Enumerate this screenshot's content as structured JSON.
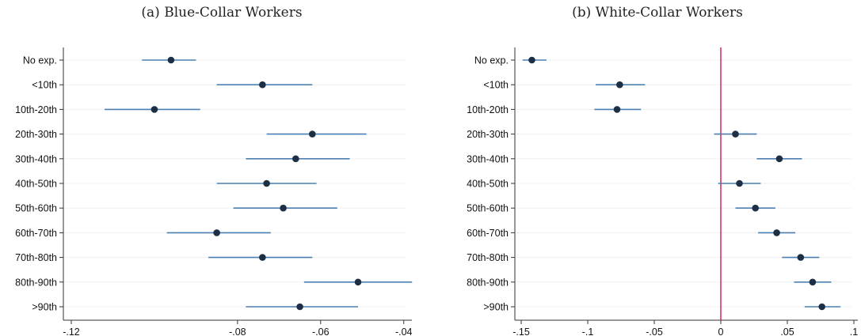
{
  "chart_data": [
    {
      "type": "scatter",
      "subtype": "coefficient-plot-with-confidence-intervals",
      "title": "(a) Blue-Collar Workers",
      "categories": [
        "No exp.",
        "<10th",
        "10th-20th",
        "20th-30th",
        "30th-40th",
        "40th-50th",
        "50th-60th",
        "60th-70th",
        "70th-80th",
        "80th-90th",
        ">90th"
      ],
      "x_ticks": [
        -0.12,
        -0.08,
        -0.06,
        -0.04
      ],
      "x_tick_labels": [
        "-.12",
        "-.08",
        "-.06",
        "-.04"
      ],
      "xlim": [
        -0.12,
        -0.039
      ],
      "points": [
        {
          "label": "No exp.",
          "estimate": -0.096,
          "ci_low": -0.103,
          "ci_high": -0.09
        },
        {
          "label": "<10th",
          "estimate": -0.074,
          "ci_low": -0.085,
          "ci_high": -0.062
        },
        {
          "label": "10th-20th",
          "estimate": -0.1,
          "ci_low": -0.112,
          "ci_high": -0.089
        },
        {
          "label": "20th-30th",
          "estimate": -0.062,
          "ci_low": -0.073,
          "ci_high": -0.049
        },
        {
          "label": "30th-40th",
          "estimate": -0.066,
          "ci_low": -0.078,
          "ci_high": -0.053
        },
        {
          "label": "40th-50th",
          "estimate": -0.073,
          "ci_low": -0.085,
          "ci_high": -0.061
        },
        {
          "label": "50th-60th",
          "estimate": -0.069,
          "ci_low": -0.081,
          "ci_high": -0.056
        },
        {
          "label": "60th-70th",
          "estimate": -0.085,
          "ci_low": -0.097,
          "ci_high": -0.072
        },
        {
          "label": "70th-80th",
          "estimate": -0.074,
          "ci_low": -0.087,
          "ci_high": -0.062
        },
        {
          "label": "80th-90th",
          "estimate": -0.051,
          "ci_low": -0.064,
          "ci_high": -0.038
        },
        {
          "label": ">90th",
          "estimate": -0.065,
          "ci_low": -0.078,
          "ci_high": -0.051
        }
      ],
      "reference_line": null,
      "grid": true
    },
    {
      "type": "scatter",
      "subtype": "coefficient-plot-with-confidence-intervals",
      "title": "(b) White-Collar Workers",
      "categories": [
        "No exp.",
        "<10th",
        "10th-20th",
        "20th-30th",
        "30th-40th",
        "40th-50th",
        "50th-60th",
        "60th-70th",
        "70th-80th",
        "80th-90th",
        ">90th"
      ],
      "x_ticks": [
        -0.15,
        -0.1,
        -0.05,
        0,
        0.05,
        0.1
      ],
      "x_tick_labels": [
        "-.15",
        "-.1",
        "-.05",
        "0",
        ".05",
        ".1"
      ],
      "xlim": [
        -0.153,
        0.1
      ],
      "points": [
        {
          "label": "No exp.",
          "estimate": -0.142,
          "ci_low": -0.149,
          "ci_high": -0.131
        },
        {
          "label": "<10th",
          "estimate": -0.076,
          "ci_low": -0.094,
          "ci_high": -0.057
        },
        {
          "label": "10th-20th",
          "estimate": -0.078,
          "ci_low": -0.095,
          "ci_high": -0.06
        },
        {
          "label": "20th-30th",
          "estimate": 0.011,
          "ci_low": -0.005,
          "ci_high": 0.027
        },
        {
          "label": "30th-40th",
          "estimate": 0.044,
          "ci_low": 0.027,
          "ci_high": 0.061
        },
        {
          "label": "40th-50th",
          "estimate": 0.014,
          "ci_low": -0.002,
          "ci_high": 0.03
        },
        {
          "label": "50th-60th",
          "estimate": 0.026,
          "ci_low": 0.011,
          "ci_high": 0.041
        },
        {
          "label": "60th-70th",
          "estimate": 0.042,
          "ci_low": 0.028,
          "ci_high": 0.056
        },
        {
          "label": "70th-80th",
          "estimate": 0.06,
          "ci_low": 0.046,
          "ci_high": 0.074
        },
        {
          "label": "80th-90th",
          "estimate": 0.069,
          "ci_low": 0.055,
          "ci_high": 0.083
        },
        {
          "label": ">90th",
          "estimate": 0.076,
          "ci_low": 0.063,
          "ci_high": 0.09
        }
      ],
      "reference_line": {
        "x": 0,
        "color": "#d6326e"
      },
      "grid": true
    }
  ],
  "colors": {
    "ci_line": "#4a7fb0",
    "point": "#1c2f45",
    "axis": "#333333",
    "grid": "#eef0f3",
    "reference": "#d6326e"
  }
}
